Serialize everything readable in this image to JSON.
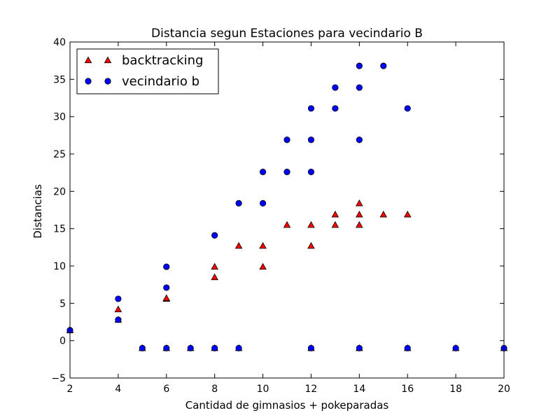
{
  "chart_data": {
    "type": "scatter",
    "title": "Distancia segun Estaciones para vecindario B",
    "xlabel": "Cantidad de gimnasios + pokeparadas",
    "ylabel": "Distancias",
    "xlim": [
      2,
      20
    ],
    "ylim": [
      -5,
      40
    ],
    "xticks": [
      2,
      4,
      6,
      8,
      10,
      12,
      14,
      16,
      18,
      20
    ],
    "yticks": [
      -5,
      0,
      5,
      10,
      15,
      20,
      25,
      30,
      35,
      40
    ],
    "ytick_labels": [
      "−5",
      "0",
      "5",
      "10",
      "15",
      "20",
      "25",
      "30",
      "35",
      "40"
    ],
    "grid": false,
    "legend_position": "top-left",
    "series": [
      {
        "name": "backtracking",
        "marker": "triangle",
        "color": "#ff0000",
        "points": [
          [
            2,
            1.4
          ],
          [
            4,
            4.2
          ],
          [
            4,
            2.8
          ],
          [
            5,
            -1
          ],
          [
            6,
            5.6
          ],
          [
            6,
            5.7
          ],
          [
            6,
            -1
          ],
          [
            7,
            -1
          ],
          [
            8,
            9.9
          ],
          [
            8,
            8.5
          ],
          [
            8,
            -1
          ],
          [
            9,
            12.7
          ],
          [
            9,
            -1
          ],
          [
            10,
            12.7
          ],
          [
            10,
            9.9
          ],
          [
            11,
            15.5
          ],
          [
            12,
            15.5
          ],
          [
            12,
            12.7
          ],
          [
            12,
            -1
          ],
          [
            13,
            16.9
          ],
          [
            13,
            15.5
          ],
          [
            14,
            18.4
          ],
          [
            14,
            16.9
          ],
          [
            14,
            15.5
          ],
          [
            14,
            -1
          ],
          [
            15,
            16.9
          ],
          [
            16,
            16.9
          ],
          [
            16,
            -1
          ],
          [
            18,
            -1
          ],
          [
            20,
            -1
          ]
        ]
      },
      {
        "name": "vecindario b",
        "marker": "circle",
        "color": "#0000ff",
        "points": [
          [
            2,
            1.4
          ],
          [
            4,
            5.6
          ],
          [
            4,
            2.8
          ],
          [
            5,
            -1
          ],
          [
            6,
            9.9
          ],
          [
            6,
            7.1
          ],
          [
            6,
            -1
          ],
          [
            7,
            -1
          ],
          [
            8,
            14.1
          ],
          [
            8,
            -1
          ],
          [
            9,
            18.4
          ],
          [
            9,
            -1
          ],
          [
            10,
            22.6
          ],
          [
            10,
            18.4
          ],
          [
            11,
            26.9
          ],
          [
            11,
            22.6
          ],
          [
            12,
            31.1
          ],
          [
            12,
            26.9
          ],
          [
            12,
            22.6
          ],
          [
            12,
            -1
          ],
          [
            13,
            33.9
          ],
          [
            13,
            31.1
          ],
          [
            14,
            36.8
          ],
          [
            14,
            33.9
          ],
          [
            14,
            26.9
          ],
          [
            14,
            -1
          ],
          [
            15,
            36.8
          ],
          [
            16,
            31.1
          ],
          [
            16,
            -1
          ],
          [
            18,
            -1
          ],
          [
            20,
            -1
          ]
        ]
      }
    ]
  }
}
